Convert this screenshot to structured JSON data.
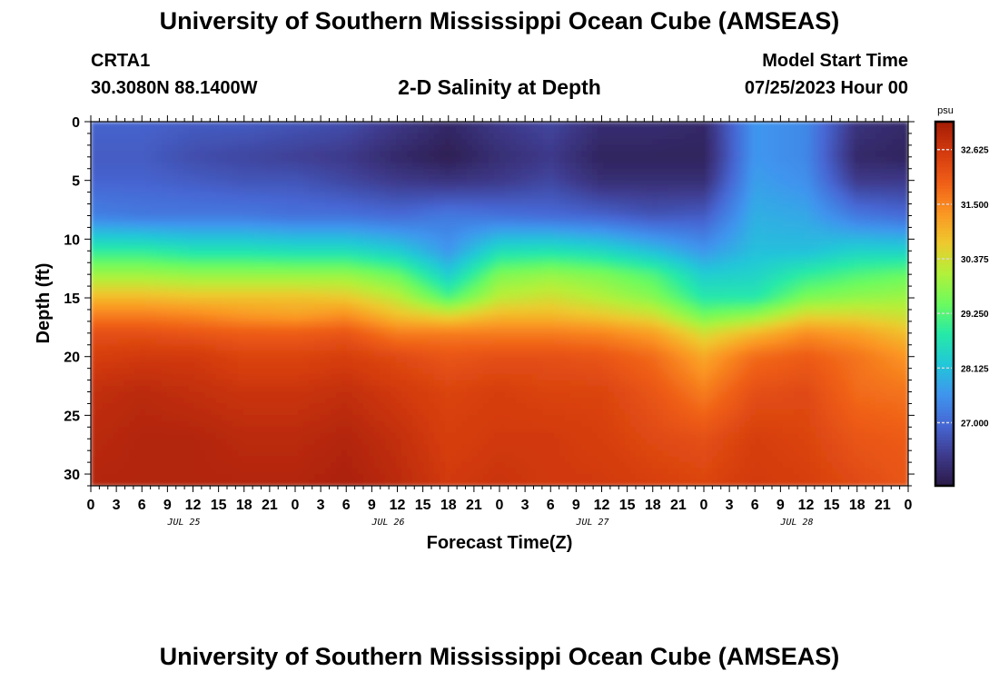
{
  "header": {
    "title": "University of Southern Mississippi Ocean Cube (AMSEAS)",
    "station_id": "CRTA1",
    "coordinates": "30.3080N  88.1400W",
    "chart_name": "2-D Salinity at Depth",
    "model_start_label": "Model Start Time",
    "model_start_value": "07/25/2023 Hour 00"
  },
  "footer": {
    "title": "University of Southern Mississippi Ocean Cube (AMSEAS)"
  },
  "chart_data": {
    "type": "heatmap",
    "xlabel": "Forecast Time(Z)",
    "ylabel": "Depth (ft)",
    "x_tick_labels": [
      "0",
      "3",
      "6",
      "9",
      "12",
      "15",
      "18",
      "21",
      "0",
      "3",
      "6",
      "9",
      "12",
      "15",
      "18",
      "21",
      "0",
      "3",
      "6",
      "9",
      "12",
      "15",
      "18",
      "21",
      "0",
      "3",
      "6",
      "9",
      "12",
      "15",
      "18",
      "21",
      "0"
    ],
    "date_labels": [
      "JUL 25",
      "JUL 26",
      "JUL 27",
      "JUL 28"
    ],
    "date_label_tick_index": [
      4,
      12,
      20,
      28
    ],
    "y_ticks": [
      0,
      5,
      10,
      15,
      20,
      25,
      30
    ],
    "ylim": [
      0,
      31
    ],
    "x_range_hours": [
      0,
      96
    ],
    "y_inverted": true,
    "colorbar": {
      "unit": "psu",
      "tick_values": [
        32.625,
        31.5,
        30.375,
        29.25,
        28.125,
        27.0
      ],
      "tick_labels": [
        "32.625",
        "31.500",
        "30.375",
        "29.250",
        "28.125",
        "27.000"
      ],
      "range": [
        25.7,
        33.2
      ],
      "colors": [
        "#2b1a48",
        "#3e3a8c",
        "#4667d4",
        "#3f95ee",
        "#22c7d8",
        "#26e9a8",
        "#6cfb5e",
        "#b2f13a",
        "#eec92e",
        "#fb9523",
        "#ef5e17",
        "#d33a0e",
        "#a31c05"
      ]
    },
    "time_hours": [
      0,
      6,
      12,
      18,
      24,
      30,
      36,
      42,
      48,
      54,
      60,
      66,
      72,
      78,
      84,
      90,
      96
    ],
    "depth_ft": [
      0,
      3,
      5,
      8,
      11,
      13,
      15,
      16.5,
      18,
      20,
      23,
      27,
      31
    ],
    "salinity_psu": [
      [
        26.9,
        26.9,
        26.8,
        26.8,
        26.7,
        26.6,
        26.3,
        26.0,
        26.3,
        26.5,
        26.1,
        26.1,
        26.0,
        27.6,
        27.4,
        26.2,
        26.0
      ],
      [
        26.8,
        26.8,
        26.6,
        26.5,
        26.4,
        26.3,
        26.0,
        25.8,
        26.1,
        26.3,
        25.9,
        25.9,
        25.9,
        27.6,
        27.4,
        26.0,
        25.9
      ],
      [
        26.9,
        26.9,
        26.8,
        26.7,
        26.7,
        26.5,
        26.3,
        26.2,
        26.3,
        26.5,
        26.1,
        26.1,
        26.1,
        27.7,
        27.5,
        26.3,
        26.3
      ],
      [
        27.3,
        27.2,
        27.2,
        27.2,
        27.1,
        27.1,
        27.0,
        27.2,
        27.1,
        27.0,
        26.9,
        26.7,
        26.8,
        27.9,
        27.8,
        27.2,
        27.0
      ],
      [
        28.9,
        28.9,
        28.7,
        28.7,
        28.6,
        28.6,
        28.3,
        27.6,
        28.6,
        28.7,
        28.5,
        28.1,
        27.6,
        28.1,
        28.1,
        28.4,
        28.4
      ],
      [
        29.9,
        29.9,
        29.8,
        29.8,
        29.8,
        29.8,
        29.4,
        28.3,
        29.6,
        29.8,
        29.6,
        29.2,
        28.3,
        28.4,
        28.9,
        29.2,
        29.4
      ],
      [
        30.9,
        30.9,
        30.8,
        30.8,
        30.8,
        30.7,
        30.2,
        29.2,
        30.2,
        30.4,
        30.1,
        29.7,
        28.8,
        28.8,
        29.6,
        29.8,
        29.9
      ],
      [
        31.6,
        31.6,
        31.5,
        31.3,
        31.2,
        31.4,
        30.8,
        30.5,
        30.9,
        30.9,
        30.7,
        30.4,
        29.5,
        29.8,
        30.5,
        30.5,
        30.3
      ],
      [
        32.2,
        32.2,
        32.1,
        32.0,
        32.0,
        32.1,
        31.6,
        31.6,
        31.6,
        31.6,
        31.5,
        31.2,
        30.4,
        30.9,
        31.4,
        31.2,
        30.8
      ],
      [
        32.5,
        32.6,
        32.6,
        32.4,
        32.4,
        32.5,
        32.3,
        32.1,
        32.2,
        32.2,
        32.1,
        31.8,
        31.1,
        31.8,
        32.0,
        31.7,
        31.3
      ],
      [
        32.8,
        32.9,
        32.8,
        32.7,
        32.7,
        32.8,
        32.6,
        32.4,
        32.5,
        32.4,
        32.4,
        32.1,
        31.6,
        32.2,
        32.3,
        31.8,
        31.7
      ],
      [
        32.9,
        33.0,
        33.0,
        32.9,
        32.9,
        33.0,
        32.8,
        32.5,
        32.6,
        32.6,
        32.5,
        32.3,
        32.2,
        32.5,
        32.4,
        32.1,
        32.0
      ],
      [
        33.0,
        33.0,
        33.0,
        33.0,
        33.0,
        33.1,
        32.9,
        32.6,
        32.7,
        32.6,
        32.6,
        32.5,
        32.4,
        32.6,
        32.5,
        32.3,
        32.1
      ]
    ]
  }
}
